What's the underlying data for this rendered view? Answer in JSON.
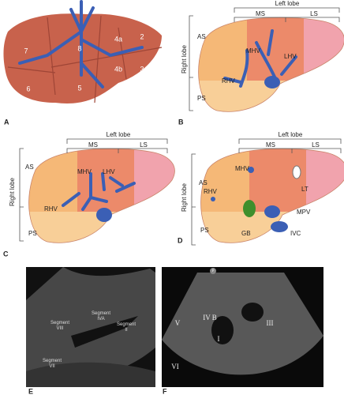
{
  "panel_a": {
    "letter": "A",
    "segments": [
      "7",
      "8",
      "4a",
      "2",
      "4b",
      "3",
      "6",
      "5"
    ]
  },
  "panel_b": {
    "letter": "B",
    "labels": [
      "Left lobe",
      "MS",
      "LS",
      "AS",
      "Right lobe",
      "MHV",
      "LHV",
      "RHV",
      "PS"
    ]
  },
  "panel_c": {
    "letter": "C",
    "labels": [
      "Left lobe",
      "MS",
      "LS",
      "AS",
      "Right lobe",
      "MHV",
      "LHV",
      "RHV",
      "PS"
    ]
  },
  "panel_d": {
    "letter": "D",
    "labels": [
      "Left lobe",
      "MS",
      "LS",
      "AS",
      "Right lobe",
      "MHV",
      "RHV",
      "LT",
      "MPV",
      "GB",
      "IVC",
      "PS"
    ]
  },
  "panel_e": {
    "letter": "E",
    "labels": [
      [
        "Segment",
        "VIII"
      ],
      [
        "Segment",
        "IVA"
      ],
      [
        "Segment",
        "II"
      ],
      [
        "Segment",
        "VII"
      ]
    ]
  },
  "panel_f": {
    "letter": "F",
    "labels": [
      "IV B",
      "V",
      "III",
      "I",
      "VI",
      "P"
    ]
  }
}
